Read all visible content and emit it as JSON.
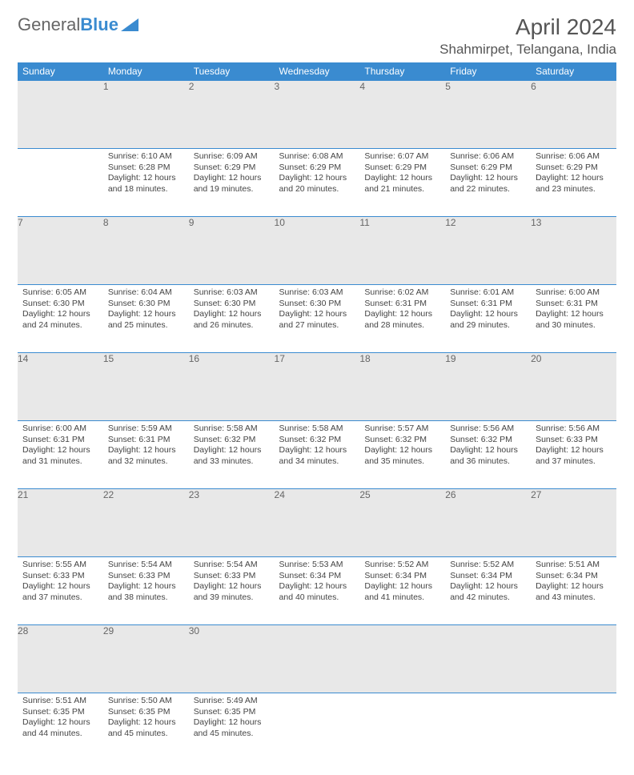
{
  "logo": {
    "text1": "General",
    "text2": "Blue"
  },
  "title": "April 2024",
  "location": "Shahmirpet, Telangana, India",
  "colors": {
    "header_bg": "#3a8bd0",
    "header_text": "#ffffff",
    "daynum_bg": "#e8e8e8",
    "border": "#3a8bd0",
    "text": "#444444"
  },
  "day_headers": [
    "Sunday",
    "Monday",
    "Tuesday",
    "Wednesday",
    "Thursday",
    "Friday",
    "Saturday"
  ],
  "weeks": [
    {
      "nums": [
        "",
        "1",
        "2",
        "3",
        "4",
        "5",
        "6"
      ],
      "cells": [
        {
          "sunrise": "",
          "sunset": "",
          "daylight": ""
        },
        {
          "sunrise": "Sunrise: 6:10 AM",
          "sunset": "Sunset: 6:28 PM",
          "daylight": "Daylight: 12 hours and 18 minutes."
        },
        {
          "sunrise": "Sunrise: 6:09 AM",
          "sunset": "Sunset: 6:29 PM",
          "daylight": "Daylight: 12 hours and 19 minutes."
        },
        {
          "sunrise": "Sunrise: 6:08 AM",
          "sunset": "Sunset: 6:29 PM",
          "daylight": "Daylight: 12 hours and 20 minutes."
        },
        {
          "sunrise": "Sunrise: 6:07 AM",
          "sunset": "Sunset: 6:29 PM",
          "daylight": "Daylight: 12 hours and 21 minutes."
        },
        {
          "sunrise": "Sunrise: 6:06 AM",
          "sunset": "Sunset: 6:29 PM",
          "daylight": "Daylight: 12 hours and 22 minutes."
        },
        {
          "sunrise": "Sunrise: 6:06 AM",
          "sunset": "Sunset: 6:29 PM",
          "daylight": "Daylight: 12 hours and 23 minutes."
        }
      ]
    },
    {
      "nums": [
        "7",
        "8",
        "9",
        "10",
        "11",
        "12",
        "13"
      ],
      "cells": [
        {
          "sunrise": "Sunrise: 6:05 AM",
          "sunset": "Sunset: 6:30 PM",
          "daylight": "Daylight: 12 hours and 24 minutes."
        },
        {
          "sunrise": "Sunrise: 6:04 AM",
          "sunset": "Sunset: 6:30 PM",
          "daylight": "Daylight: 12 hours and 25 minutes."
        },
        {
          "sunrise": "Sunrise: 6:03 AM",
          "sunset": "Sunset: 6:30 PM",
          "daylight": "Daylight: 12 hours and 26 minutes."
        },
        {
          "sunrise": "Sunrise: 6:03 AM",
          "sunset": "Sunset: 6:30 PM",
          "daylight": "Daylight: 12 hours and 27 minutes."
        },
        {
          "sunrise": "Sunrise: 6:02 AM",
          "sunset": "Sunset: 6:31 PM",
          "daylight": "Daylight: 12 hours and 28 minutes."
        },
        {
          "sunrise": "Sunrise: 6:01 AM",
          "sunset": "Sunset: 6:31 PM",
          "daylight": "Daylight: 12 hours and 29 minutes."
        },
        {
          "sunrise": "Sunrise: 6:00 AM",
          "sunset": "Sunset: 6:31 PM",
          "daylight": "Daylight: 12 hours and 30 minutes."
        }
      ]
    },
    {
      "nums": [
        "14",
        "15",
        "16",
        "17",
        "18",
        "19",
        "20"
      ],
      "cells": [
        {
          "sunrise": "Sunrise: 6:00 AM",
          "sunset": "Sunset: 6:31 PM",
          "daylight": "Daylight: 12 hours and 31 minutes."
        },
        {
          "sunrise": "Sunrise: 5:59 AM",
          "sunset": "Sunset: 6:31 PM",
          "daylight": "Daylight: 12 hours and 32 minutes."
        },
        {
          "sunrise": "Sunrise: 5:58 AM",
          "sunset": "Sunset: 6:32 PM",
          "daylight": "Daylight: 12 hours and 33 minutes."
        },
        {
          "sunrise": "Sunrise: 5:58 AM",
          "sunset": "Sunset: 6:32 PM",
          "daylight": "Daylight: 12 hours and 34 minutes."
        },
        {
          "sunrise": "Sunrise: 5:57 AM",
          "sunset": "Sunset: 6:32 PM",
          "daylight": "Daylight: 12 hours and 35 minutes."
        },
        {
          "sunrise": "Sunrise: 5:56 AM",
          "sunset": "Sunset: 6:32 PM",
          "daylight": "Daylight: 12 hours and 36 minutes."
        },
        {
          "sunrise": "Sunrise: 5:56 AM",
          "sunset": "Sunset: 6:33 PM",
          "daylight": "Daylight: 12 hours and 37 minutes."
        }
      ]
    },
    {
      "nums": [
        "21",
        "22",
        "23",
        "24",
        "25",
        "26",
        "27"
      ],
      "cells": [
        {
          "sunrise": "Sunrise: 5:55 AM",
          "sunset": "Sunset: 6:33 PM",
          "daylight": "Daylight: 12 hours and 37 minutes."
        },
        {
          "sunrise": "Sunrise: 5:54 AM",
          "sunset": "Sunset: 6:33 PM",
          "daylight": "Daylight: 12 hours and 38 minutes."
        },
        {
          "sunrise": "Sunrise: 5:54 AM",
          "sunset": "Sunset: 6:33 PM",
          "daylight": "Daylight: 12 hours and 39 minutes."
        },
        {
          "sunrise": "Sunrise: 5:53 AM",
          "sunset": "Sunset: 6:34 PM",
          "daylight": "Daylight: 12 hours and 40 minutes."
        },
        {
          "sunrise": "Sunrise: 5:52 AM",
          "sunset": "Sunset: 6:34 PM",
          "daylight": "Daylight: 12 hours and 41 minutes."
        },
        {
          "sunrise": "Sunrise: 5:52 AM",
          "sunset": "Sunset: 6:34 PM",
          "daylight": "Daylight: 12 hours and 42 minutes."
        },
        {
          "sunrise": "Sunrise: 5:51 AM",
          "sunset": "Sunset: 6:34 PM",
          "daylight": "Daylight: 12 hours and 43 minutes."
        }
      ]
    },
    {
      "nums": [
        "28",
        "29",
        "30",
        "",
        "",
        "",
        ""
      ],
      "cells": [
        {
          "sunrise": "Sunrise: 5:51 AM",
          "sunset": "Sunset: 6:35 PM",
          "daylight": "Daylight: 12 hours and 44 minutes."
        },
        {
          "sunrise": "Sunrise: 5:50 AM",
          "sunset": "Sunset: 6:35 PM",
          "daylight": "Daylight: 12 hours and 45 minutes."
        },
        {
          "sunrise": "Sunrise: 5:49 AM",
          "sunset": "Sunset: 6:35 PM",
          "daylight": "Daylight: 12 hours and 45 minutes."
        },
        {
          "sunrise": "",
          "sunset": "",
          "daylight": ""
        },
        {
          "sunrise": "",
          "sunset": "",
          "daylight": ""
        },
        {
          "sunrise": "",
          "sunset": "",
          "daylight": ""
        },
        {
          "sunrise": "",
          "sunset": "",
          "daylight": ""
        }
      ]
    }
  ]
}
